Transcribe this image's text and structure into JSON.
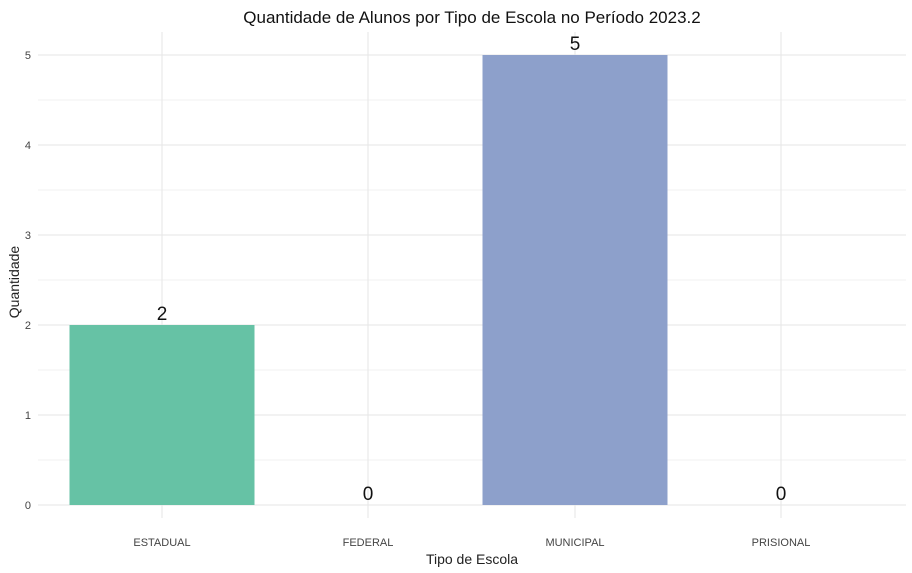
{
  "chart_data": {
    "type": "bar",
    "title": "Quantidade de Alunos por Tipo de Escola no Período 2023.2",
    "xlabel": "Tipo de Escola",
    "ylabel": "Quantidade",
    "categories": [
      "ESTADUAL",
      "FEDERAL",
      "MUNICIPAL",
      "PRISIONAL"
    ],
    "values": [
      2,
      0,
      5,
      0
    ],
    "data_labels": [
      "2",
      "0",
      "5",
      "0"
    ],
    "colors": [
      "#66c2a5",
      "#fc8d62",
      "#8da0cb",
      "#e78ac3"
    ],
    "ylim": [
      0,
      5.25
    ],
    "yticks": [
      0,
      1,
      2,
      3,
      4,
      5
    ],
    "grid": true,
    "legend": "none"
  }
}
